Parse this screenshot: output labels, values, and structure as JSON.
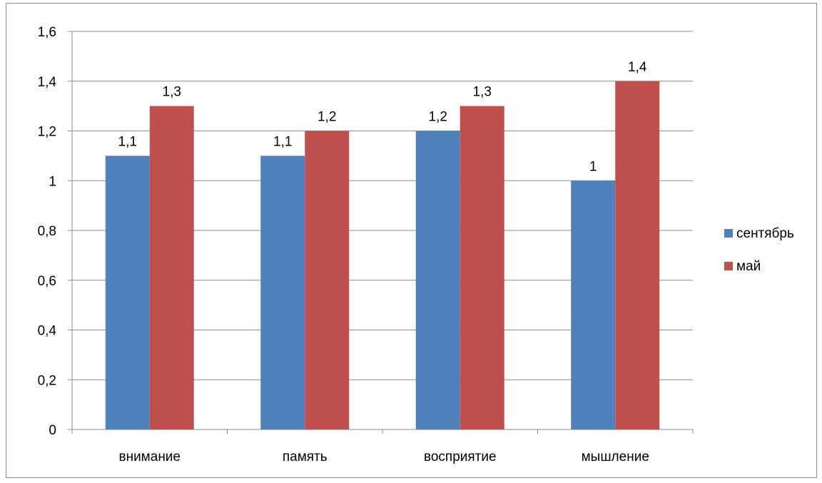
{
  "chart_data": {
    "type": "bar",
    "title": "",
    "xlabel": "",
    "ylabel": "",
    "categories": [
      "внимание",
      "память",
      "восприятие",
      "мышление"
    ],
    "series": [
      {
        "name": "сентябрь",
        "color": "#4F81BD",
        "values": [
          1.1,
          1.1,
          1.2,
          1.0
        ],
        "labels": [
          "1,1",
          "1,1",
          "1,2",
          "1"
        ]
      },
      {
        "name": "май",
        "color": "#C0504D",
        "values": [
          1.3,
          1.2,
          1.3,
          1.4
        ],
        "labels": [
          "1,3",
          "1,2",
          "1,3",
          "1,4"
        ]
      }
    ],
    "ylim": [
      0,
      1.6
    ],
    "yticks": [
      0,
      0.2,
      0.4,
      0.6,
      0.8,
      1.0,
      1.2,
      1.4,
      1.6
    ],
    "ytick_labels": [
      "0",
      "0,2",
      "0,4",
      "0,6",
      "0,8",
      "1",
      "1,2",
      "1,4",
      "1,6"
    ],
    "grid": true,
    "legend_position": "right"
  }
}
